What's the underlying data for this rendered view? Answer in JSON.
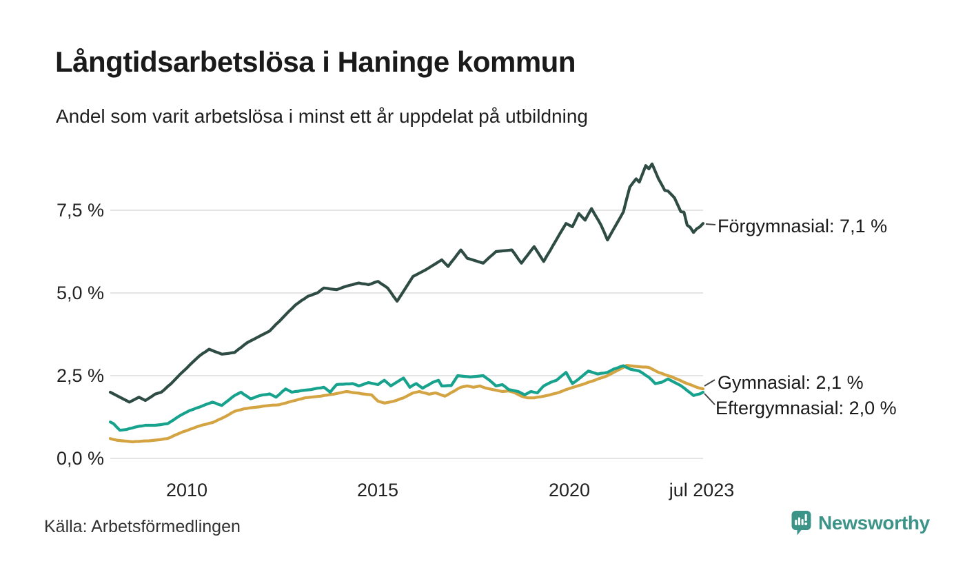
{
  "header": {
    "title": "Långtidsarbetslösa i Haninge kommun",
    "subtitle": "Andel som varit arbetslösa i minst ett år uppdelat på utbildning"
  },
  "footer": {
    "source": "Källa: Arbetsförmedlingen",
    "brand": "Newsworthy",
    "brand_color": "#3c9489"
  },
  "chart_data": {
    "type": "line",
    "title": "Långtidsarbetslösa i Haninge kommun",
    "subtitle": "Andel som varit arbetslösa i minst ett år uppdelat på utbildning",
    "xlabel": "",
    "ylabel": "",
    "frequency": "monthly",
    "x_range": [
      "2008-01",
      "2023-07"
    ],
    "ylim": [
      0,
      9.2
    ],
    "grid": true,
    "grid_color": "#e4e4e4",
    "leader_line_color": "#444444",
    "legend_position": "end-of-line-labels",
    "y_axis": {
      "ticks": [
        {
          "value": 7.5,
          "label": "7,5 %"
        },
        {
          "value": 5.0,
          "label": "5,0 %"
        },
        {
          "value": 2.5,
          "label": "2,5 %"
        },
        {
          "value": 0.0,
          "label": "0,0 %"
        }
      ]
    },
    "x_axis": {
      "ticks": [
        {
          "x": "2010-01",
          "label": "2010"
        },
        {
          "x": "2015-01",
          "label": "2015"
        },
        {
          "x": "2020-01",
          "label": "2020"
        },
        {
          "x": "2023-07",
          "label": "jul 2023"
        }
      ]
    },
    "series": [
      {
        "key": "forgymnasial",
        "name": "Förgymnasial",
        "end_label": "Förgymnasial: 7,1 %",
        "end_value": 7.1,
        "color": "#2e4b44",
        "values": [
          2.0,
          1.95,
          1.9,
          1.85,
          1.8,
          1.75,
          1.7,
          1.75,
          1.8,
          1.85,
          1.8,
          1.75,
          1.81,
          1.87,
          1.94,
          1.97,
          2.0,
          2.08,
          2.17,
          2.25,
          2.35,
          2.45,
          2.55,
          2.64,
          2.73,
          2.83,
          2.92,
          3.01,
          3.1,
          3.17,
          3.23,
          3.3,
          3.26,
          3.22,
          3.19,
          3.15,
          3.16,
          3.17,
          3.19,
          3.2,
          3.28,
          3.35,
          3.43,
          3.5,
          3.55,
          3.6,
          3.65,
          3.7,
          3.75,
          3.8,
          3.85,
          3.95,
          4.05,
          4.14,
          4.24,
          4.34,
          4.44,
          4.53,
          4.63,
          4.7,
          4.77,
          4.83,
          4.9,
          4.93,
          4.97,
          5.0,
          5.08,
          5.15,
          5.14,
          5.12,
          5.11,
          5.1,
          5.13,
          5.17,
          5.2,
          5.23,
          5.25,
          5.28,
          5.3,
          5.28,
          5.27,
          5.25,
          5.28,
          5.32,
          5.35,
          5.28,
          5.22,
          5.15,
          5.02,
          4.88,
          4.75,
          4.9,
          5.05,
          5.2,
          5.35,
          5.5,
          5.55,
          5.6,
          5.65,
          5.7,
          5.76,
          5.82,
          5.88,
          5.94,
          6.0,
          5.9,
          5.8,
          5.93,
          6.05,
          6.18,
          6.3,
          6.18,
          6.05,
          6.02,
          5.99,
          5.96,
          5.93,
          5.9,
          5.99,
          6.08,
          6.16,
          6.25,
          6.26,
          6.27,
          6.28,
          6.29,
          6.3,
          6.17,
          6.03,
          5.9,
          6.03,
          6.15,
          6.28,
          6.4,
          6.25,
          6.1,
          5.95,
          6.12,
          6.28,
          6.45,
          6.61,
          6.78,
          6.94,
          7.1,
          7.05,
          7.0,
          7.2,
          7.4,
          7.3,
          7.2,
          7.38,
          7.55,
          7.38,
          7.22,
          7.05,
          6.83,
          6.6,
          6.77,
          6.94,
          7.11,
          7.28,
          7.45,
          7.83,
          8.2,
          8.33,
          8.45,
          8.35,
          8.6,
          8.85,
          8.75,
          8.9,
          8.68,
          8.45,
          8.28,
          8.1,
          8.08,
          7.98,
          7.88,
          7.67,
          7.46,
          7.44,
          7.05,
          6.98,
          6.83,
          6.94,
          7.0,
          7.1
        ]
      },
      {
        "key": "gymnasial",
        "name": "Gymnasial",
        "end_label": "Gymnasial: 2,1 %",
        "end_value": 2.1,
        "color": "#d4a443",
        "values": [
          0.6,
          0.57,
          0.55,
          0.54,
          0.53,
          0.52,
          0.51,
          0.5,
          0.51,
          0.51,
          0.52,
          0.53,
          0.53,
          0.54,
          0.55,
          0.56,
          0.57,
          0.59,
          0.6,
          0.64,
          0.69,
          0.73,
          0.77,
          0.81,
          0.84,
          0.88,
          0.91,
          0.95,
          0.98,
          1.01,
          1.03,
          1.06,
          1.08,
          1.12,
          1.17,
          1.21,
          1.26,
          1.31,
          1.37,
          1.42,
          1.45,
          1.47,
          1.5,
          1.51,
          1.53,
          1.54,
          1.55,
          1.56,
          1.58,
          1.59,
          1.6,
          1.61,
          1.61,
          1.62,
          1.65,
          1.67,
          1.7,
          1.73,
          1.75,
          1.78,
          1.8,
          1.83,
          1.84,
          1.85,
          1.86,
          1.87,
          1.88,
          1.9,
          1.91,
          1.93,
          1.94,
          1.96,
          1.98,
          2.0,
          2.02,
          2.01,
          1.99,
          1.98,
          1.97,
          1.95,
          1.94,
          1.93,
          1.92,
          1.82,
          1.73,
          1.7,
          1.67,
          1.69,
          1.71,
          1.73,
          1.76,
          1.8,
          1.83,
          1.88,
          1.93,
          1.98,
          2.0,
          2.02,
          1.99,
          1.97,
          1.94,
          1.96,
          1.98,
          1.95,
          1.91,
          1.88,
          1.93,
          1.99,
          2.04,
          2.1,
          2.15,
          2.17,
          2.19,
          2.17,
          2.15,
          2.17,
          2.19,
          2.15,
          2.12,
          2.1,
          2.08,
          2.06,
          2.04,
          2.02,
          2.03,
          2.04,
          2.01,
          1.98,
          1.93,
          1.88,
          1.85,
          1.83,
          1.83,
          1.83,
          1.85,
          1.86,
          1.88,
          1.9,
          1.92,
          1.95,
          1.97,
          2.0,
          2.04,
          2.08,
          2.11,
          2.14,
          2.17,
          2.2,
          2.23,
          2.26,
          2.3,
          2.33,
          2.36,
          2.4,
          2.43,
          2.46,
          2.5,
          2.55,
          2.6,
          2.65,
          2.7,
          2.75,
          2.81,
          2.8,
          2.79,
          2.78,
          2.77,
          2.76,
          2.76,
          2.75,
          2.7,
          2.65,
          2.6,
          2.57,
          2.53,
          2.5,
          2.47,
          2.43,
          2.39,
          2.35,
          2.3,
          2.26,
          2.23,
          2.19,
          2.15,
          2.12,
          2.1
        ]
      },
      {
        "key": "eftergymnasial",
        "name": "Eftergymnasial",
        "end_label": "Eftergymnasial: 2,0 %",
        "end_value": 2.0,
        "color": "#16a28c",
        "values": [
          1.1,
          1.05,
          0.95,
          0.85,
          0.86,
          0.87,
          0.9,
          0.92,
          0.95,
          0.97,
          0.98,
          1.0,
          1.0,
          1.0,
          1.0,
          1.01,
          1.02,
          1.04,
          1.05,
          1.11,
          1.17,
          1.24,
          1.3,
          1.35,
          1.4,
          1.45,
          1.48,
          1.52,
          1.55,
          1.59,
          1.63,
          1.66,
          1.7,
          1.67,
          1.63,
          1.6,
          1.68,
          1.75,
          1.83,
          1.9,
          1.95,
          2.0,
          1.93,
          1.87,
          1.8,
          1.83,
          1.87,
          1.9,
          1.92,
          1.93,
          1.95,
          1.9,
          1.85,
          1.93,
          2.02,
          2.1,
          2.05,
          2.0,
          2.02,
          2.03,
          2.05,
          2.06,
          2.07,
          2.08,
          2.1,
          2.12,
          2.13,
          2.15,
          2.08,
          2.0,
          2.12,
          2.23,
          2.24,
          2.24,
          2.25,
          2.25,
          2.26,
          2.23,
          2.19,
          2.22,
          2.26,
          2.29,
          2.27,
          2.25,
          2.23,
          2.3,
          2.36,
          2.28,
          2.19,
          2.25,
          2.31,
          2.37,
          2.43,
          2.29,
          2.15,
          2.21,
          2.26,
          2.19,
          2.12,
          2.18,
          2.23,
          2.29,
          2.33,
          2.36,
          2.19,
          2.19,
          2.2,
          2.2,
          2.35,
          2.5,
          2.49,
          2.48,
          2.47,
          2.46,
          2.47,
          2.48,
          2.49,
          2.5,
          2.43,
          2.36,
          2.28,
          2.19,
          2.21,
          2.23,
          2.16,
          2.08,
          2.06,
          2.04,
          2.02,
          1.97,
          1.92,
          1.97,
          2.02,
          2.0,
          1.98,
          2.09,
          2.19,
          2.24,
          2.29,
          2.33,
          2.36,
          2.44,
          2.52,
          2.6,
          2.43,
          2.26,
          2.33,
          2.4,
          2.48,
          2.56,
          2.64,
          2.61,
          2.58,
          2.55,
          2.57,
          2.58,
          2.6,
          2.65,
          2.7,
          2.73,
          2.77,
          2.8,
          2.75,
          2.7,
          2.68,
          2.66,
          2.64,
          2.58,
          2.51,
          2.45,
          2.36,
          2.26,
          2.28,
          2.3,
          2.35,
          2.4,
          2.35,
          2.3,
          2.25,
          2.2,
          2.13,
          2.05,
          1.98,
          1.9,
          1.93,
          1.95,
          2.0
        ]
      }
    ]
  }
}
